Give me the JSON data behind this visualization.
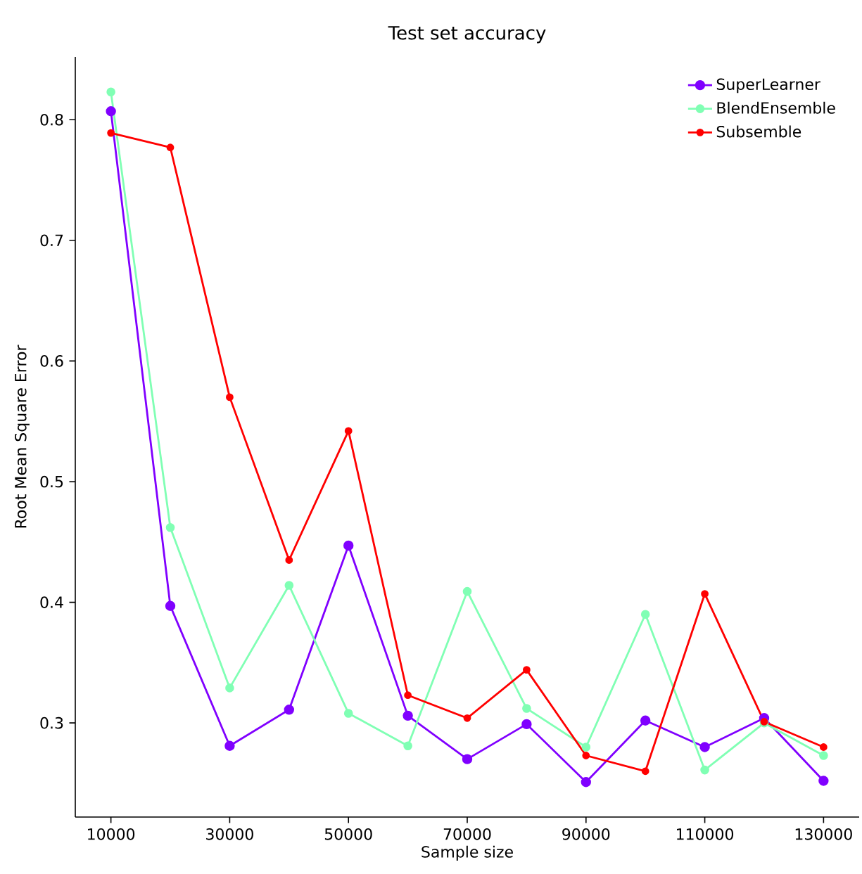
{
  "chart_data": {
    "type": "line",
    "title": "Test set accuracy",
    "xlabel": "Sample size",
    "ylabel": "Root Mean Square Error",
    "x": [
      10000,
      20000,
      30000,
      40000,
      50000,
      60000,
      70000,
      80000,
      90000,
      100000,
      110000,
      120000,
      130000
    ],
    "series": [
      {
        "name": "SuperLearner",
        "color": "#8000ff",
        "values": [
          0.807,
          0.397,
          0.281,
          0.311,
          0.447,
          0.306,
          0.27,
          0.299,
          0.251,
          0.302,
          0.28,
          0.304,
          0.252
        ]
      },
      {
        "name": "BlendEnsemble",
        "color": "#80ffb4",
        "values": [
          0.823,
          0.462,
          0.329,
          0.414,
          0.308,
          0.281,
          0.409,
          0.312,
          0.28,
          0.39,
          0.261,
          0.3,
          0.273
        ]
      },
      {
        "name": "Subsemble",
        "color": "#ff0000",
        "values": [
          0.789,
          0.777,
          0.57,
          0.435,
          0.542,
          0.323,
          0.304,
          0.344,
          0.273,
          0.26,
          0.407,
          0.301,
          0.28
        ]
      }
    ],
    "xlim": [
      4000,
      136000
    ],
    "ylim": [
      0.222,
      0.852
    ],
    "xticks": [
      10000,
      30000,
      50000,
      70000,
      90000,
      110000,
      130000
    ],
    "yticks": [
      0.3,
      0.4,
      0.5,
      0.6,
      0.7,
      0.8
    ],
    "legend": "top right",
    "marker": "circle",
    "line_style": "solid",
    "grid": false
  }
}
